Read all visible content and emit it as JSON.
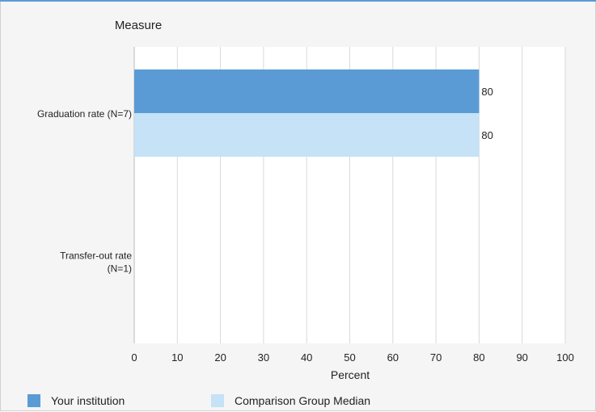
{
  "chart_data": {
    "type": "bar",
    "orientation": "horizontal",
    "title": "",
    "category_axis_title": "Measure",
    "xlabel": "Percent",
    "xlim": [
      0,
      100
    ],
    "x_ticks": [
      0,
      10,
      20,
      30,
      40,
      50,
      60,
      70,
      80,
      90,
      100
    ],
    "categories": [
      {
        "lines": [
          "Graduation rate (N=7)"
        ]
      },
      {
        "lines": [
          "Transfer-out rate",
          "(N=1)"
        ]
      }
    ],
    "series": [
      {
        "name": "Your institution",
        "color": "#5b9bd5",
        "values": [
          80,
          null
        ]
      },
      {
        "name": "Comparison Group Median",
        "color": "#c5e2f6",
        "values": [
          80,
          null
        ]
      }
    ],
    "grid": true,
    "legend_position": "bottom-left"
  }
}
